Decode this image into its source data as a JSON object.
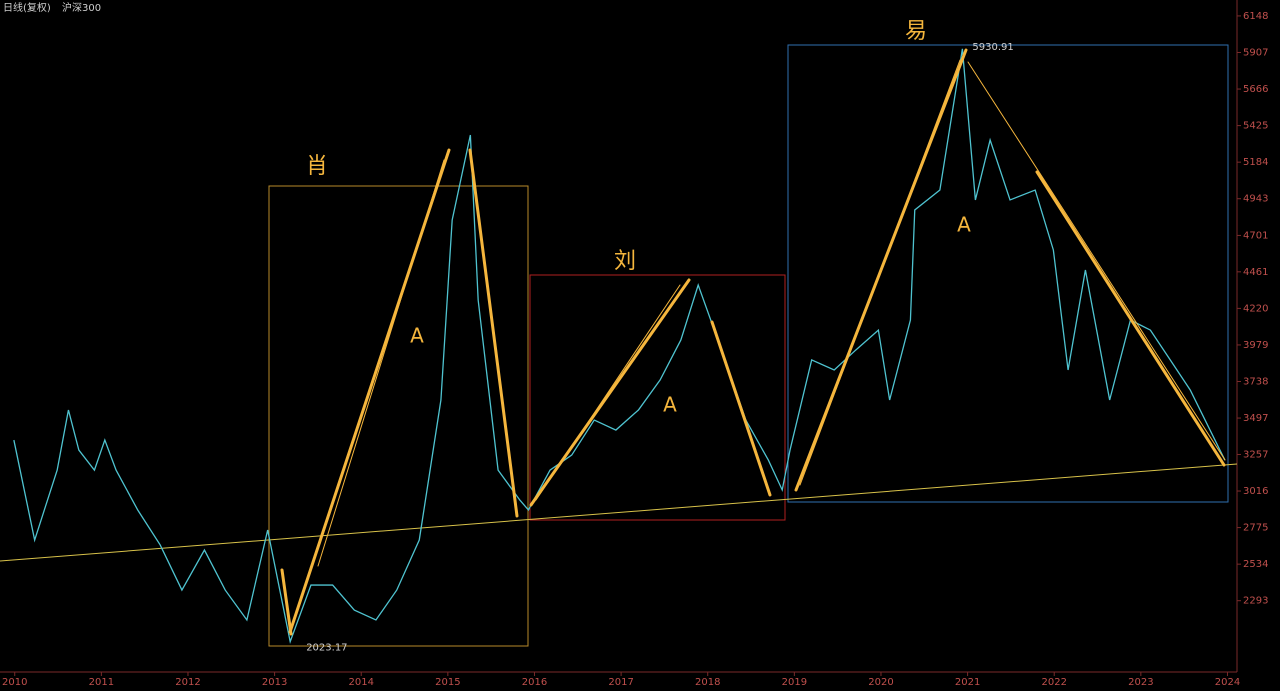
{
  "chart_data": {
    "type": "line",
    "title": "沪深300",
    "subtitle": "日线(复权)",
    "x": [
      2009.99,
      2010.23,
      2010.49,
      2010.62,
      2010.74,
      2010.92,
      2011.04,
      2011.17,
      2011.42,
      2011.68,
      2011.93,
      2012.19,
      2012.43,
      2012.68,
      2012.92,
      2013.18,
      2013.42,
      2013.67,
      2013.92,
      2014.17,
      2014.41,
      2014.67,
      2014.92,
      2015.05,
      2015.26,
      2015.35,
      2015.58,
      2015.83,
      2015.93,
      2016.18,
      2016.43,
      2016.69,
      2016.94,
      2017.2,
      2017.45,
      2017.69,
      2017.89,
      2018.2,
      2018.44,
      2018.7,
      2018.86,
      2018.95,
      2019.2,
      2019.46,
      2019.71,
      2019.97,
      2020.1,
      2020.34,
      2020.39,
      2020.68,
      2020.94,
      2021.09,
      2021.26,
      2021.49,
      2021.78,
      2021.99,
      2022.16,
      2022.36,
      2022.64,
      2022.88,
      2023.11,
      2023.34,
      2023.57,
      2023.97
    ],
    "series": [
      {
        "name": "沪深300",
        "color": "#4fc3d0",
        "values": [
          3352,
          2693,
          3154,
          3550,
          3286,
          3154,
          3352,
          3154,
          2891,
          2660,
          2363,
          2627,
          2363,
          2166,
          2759,
          2023.17,
          2396,
          2396,
          2231,
          2166,
          2363,
          2693,
          3616,
          4803,
          5363,
          4275,
          3154,
          2957,
          2891,
          3154,
          3253,
          3484,
          3418,
          3550,
          3748,
          4012,
          4374,
          3880,
          3484,
          3220,
          3023,
          3286,
          3880,
          3814,
          3946,
          4077,
          3616,
          4143,
          4869,
          5000,
          5930.91,
          4935,
          5330,
          4935,
          5000,
          4605,
          3814,
          4473,
          3616,
          4143,
          4077,
          3880,
          3682,
          3220
        ]
      }
    ],
    "xlim": [
      2009.83,
      2024.11
    ],
    "xticks": [
      2010,
      2011,
      2012,
      2013,
      2014,
      2015,
      2016,
      2017,
      2018,
      2019,
      2020,
      2021,
      2022,
      2023,
      2024
    ],
    "ylim": [
      1823,
      6220
    ],
    "yticks": [
      2293,
      2534,
      2775,
      3016,
      3257,
      3497,
      3738,
      3979,
      4220,
      4461,
      4701,
      4943,
      5184,
      5425,
      5666,
      5907,
      6148
    ],
    "annotations": {
      "names": [
        "肖",
        "刘",
        "易"
      ],
      "wave": "A"
    }
  }
}
